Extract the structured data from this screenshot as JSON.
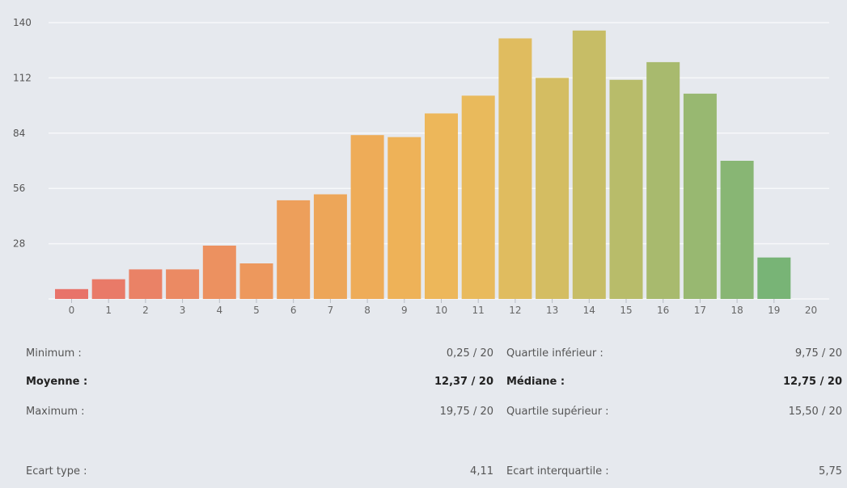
{
  "chart_data": {
    "type": "bar",
    "categories": [
      "0",
      "1",
      "2",
      "3",
      "4",
      "5",
      "6",
      "7",
      "8",
      "9",
      "10",
      "11",
      "12",
      "13",
      "14",
      "15",
      "16",
      "17",
      "18",
      "19"
    ],
    "last_tick": "20",
    "values": [
      5,
      10,
      15,
      15,
      27,
      18,
      50,
      53,
      83,
      82,
      94,
      103,
      132,
      112,
      136,
      111,
      120,
      104,
      70,
      21
    ],
    "ylim": [
      0,
      140
    ],
    "y_ticks": [
      "28",
      "56",
      "84",
      "112",
      "140"
    ],
    "grid": "horizontal",
    "colors": [
      "#e8736a",
      "#e97a68",
      "#ea8266",
      "#eb8a63",
      "#ec9160",
      "#ed985d",
      "#ed9f5b",
      "#eda659",
      "#eeac58",
      "#eeb258",
      "#edb75a",
      "#e9ba5c",
      "#e0bc5f",
      "#d4bd62",
      "#c7bd66",
      "#b8bc6a",
      "#a8ba6e",
      "#98b871",
      "#88b674",
      "#78b476"
    ],
    "title": "",
    "xlabel": "",
    "ylabel": ""
  },
  "stats": {
    "rows": [
      {
        "l1": "Minimum :",
        "v1": "0,25 / 20",
        "l2": "Quartile inférieur :",
        "v2": "9,75 / 20",
        "bold": false
      },
      {
        "l1": "Moyenne :",
        "v1": "12,37 / 20",
        "l2": "Médiane :",
        "v2": "12,75 / 20",
        "bold": true
      },
      {
        "l1": "Maximum :",
        "v1": "19,75 / 20",
        "l2": "Quartile supérieur :",
        "v2": "15,50 / 20",
        "bold": false
      },
      {
        "l1": "Ecart type :",
        "v1": "4,11",
        "l2": "Ecart interquartile :",
        "v2": "5,75",
        "bold": false
      }
    ]
  }
}
